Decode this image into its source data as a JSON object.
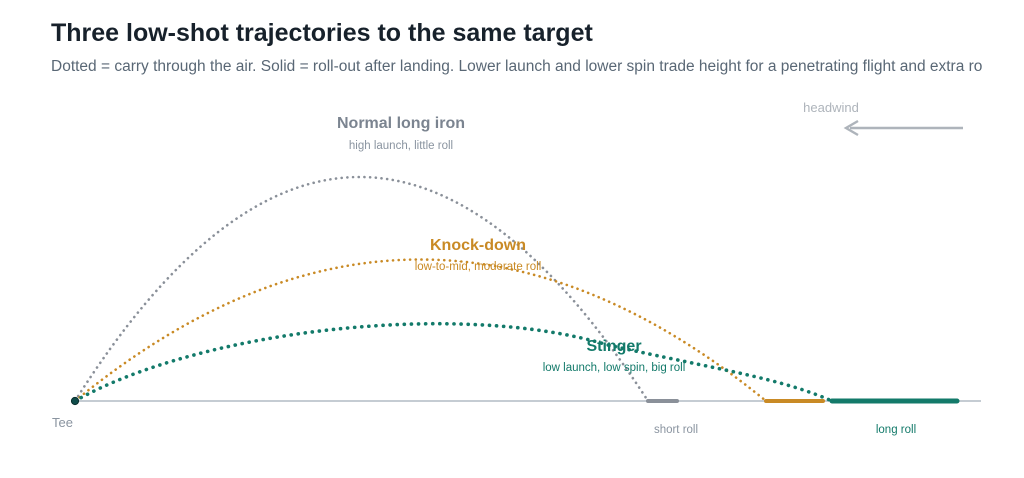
{
  "title": "Three low-shot trajectories to the same target",
  "subtitle": "Dotted = carry through the air. Solid = roll-out after landing. Lower launch and lower spin trade height for a penetrating flight and extra ro",
  "tee_label": "Tee",
  "wind": {
    "label": "headwind",
    "direction": "left"
  },
  "colors": {
    "ground": "#c5ccd3",
    "tee": "#0f4c4a",
    "normal": "#8a9099",
    "knockdown": "#c98a25",
    "stinger": "#137a6a",
    "wind": "#aeb4bb"
  },
  "shots": [
    {
      "id": "normal",
      "name": "Normal long iron",
      "description": "high launch, little roll",
      "roll_label": "short roll",
      "relative_apex": "high",
      "relative_roll": "short"
    },
    {
      "id": "knockdown",
      "name": "Knock-down",
      "description": "low-to-mid, moderate roll",
      "roll_label": "",
      "relative_apex": "mid",
      "relative_roll": "moderate"
    },
    {
      "id": "stinger",
      "name": "Stinger",
      "description": "low launch, low spin, big roll",
      "roll_label": "long roll",
      "relative_apex": "low",
      "relative_roll": "long"
    }
  ]
}
